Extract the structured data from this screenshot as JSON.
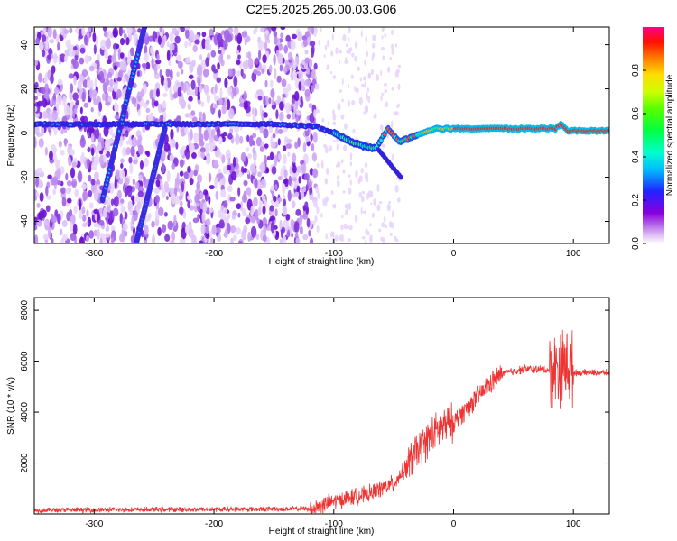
{
  "title": "C2E5.2025.265.00.03.G06",
  "colors": {
    "snr_line": "#ee3333",
    "spec_band": "#e83020",
    "background": "#ffffff"
  },
  "chart_data": [
    {
      "type": "heatmap",
      "name": "spectrogram",
      "xlabel": "Height of straight line (km)",
      "ylabel": "Frequency (Hz)",
      "xlim": [
        -350,
        130
      ],
      "ylim": [
        -50,
        48
      ],
      "xticks": [
        -300,
        -200,
        -100,
        0,
        100
      ],
      "yticks": [
        -40,
        -20,
        0,
        20,
        40
      ],
      "xtick_labels": [
        "-300",
        "-200",
        "-100",
        "0",
        "100"
      ],
      "ytick_labels": [
        "-40",
        "-20",
        "0",
        "20",
        "40"
      ],
      "main_trace": {
        "x": [
          -350,
          -300,
          -250,
          -200,
          -150,
          -115,
          -100,
          -85,
          -75,
          -65,
          -55,
          -45,
          -35,
          -25,
          -15,
          0,
          20,
          50,
          85,
          90,
          95,
          130
        ],
        "y": [
          4,
          4,
          4,
          4,
          4,
          3,
          0,
          -4,
          -6,
          -7,
          2,
          -4,
          -2,
          0,
          2,
          2,
          2,
          2,
          2,
          4,
          1,
          1
        ]
      },
      "diagonal_traces": [
        {
          "x": [
            -293,
            -258
          ],
          "y": [
            -30,
            48
          ]
        },
        {
          "x": [
            -265,
            -241
          ],
          "y": [
            -50,
            2
          ]
        }
      ],
      "noise_x_range": [
        -350,
        -115
      ],
      "colorbar": {
        "label": "Normalized spectral amplitude",
        "min": 0.0,
        "max": 1.0,
        "ticks": [
          0.0,
          0.2,
          0.4,
          0.6,
          0.8
        ],
        "tick_labels": [
          "0.0",
          "0.2",
          "0.4",
          "0.6",
          "0.8"
        ]
      }
    },
    {
      "type": "line",
      "name": "snr",
      "xlabel": "Height of straight line (km)",
      "ylabel": "SNR (10 * v/v)",
      "xlim": [
        -350,
        130
      ],
      "ylim": [
        0,
        8500
      ],
      "xticks": [
        -300,
        -200,
        -100,
        0,
        100
      ],
      "yticks": [
        2000,
        4000,
        6000,
        8000
      ],
      "xtick_labels": [
        "-300",
        "-200",
        "-100",
        "0",
        "100"
      ],
      "ytick_labels": [
        "2000",
        "4000",
        "6000",
        "8000"
      ],
      "envelope": {
        "x": [
          -350,
          -120,
          -100,
          -70,
          -50,
          -40,
          -30,
          -20,
          -10,
          0,
          10,
          20,
          30,
          40,
          60,
          80,
          90,
          95,
          100,
          130
        ],
        "y": [
          150,
          200,
          500,
          800,
          1200,
          1800,
          2500,
          3000,
          3400,
          3600,
          4100,
          4600,
          5100,
          5500,
          5700,
          5650,
          5800,
          5900,
          5550,
          5550
        ]
      },
      "noise_amplitude": [
        {
          "x": [
            -350,
            -120
          ],
          "amp": 120
        },
        {
          "x": [
            -120,
            -40
          ],
          "amp": 400
        },
        {
          "x": [
            -40,
            0
          ],
          "amp": 900
        },
        {
          "x": [
            0,
            40
          ],
          "amp": 500
        },
        {
          "x": [
            40,
            80
          ],
          "amp": 200
        },
        {
          "x": [
            80,
            100
          ],
          "amp": 1800
        },
        {
          "x": [
            100,
            130
          ],
          "amp": 150
        }
      ]
    }
  ]
}
